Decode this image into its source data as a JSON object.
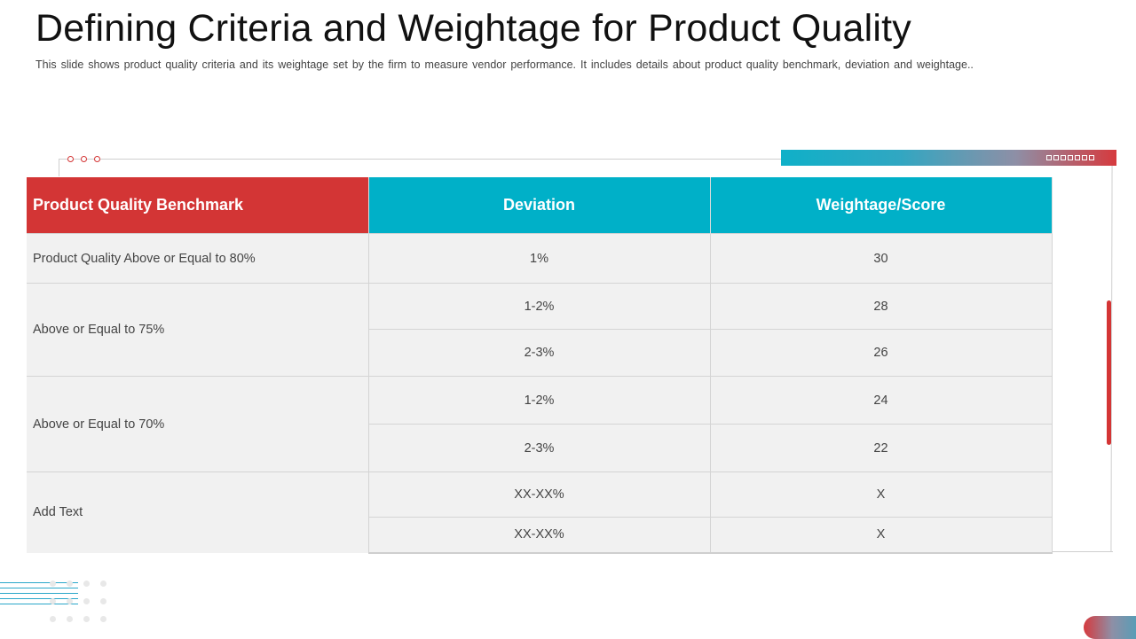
{
  "slide": {
    "title": "Defining Criteria and Weightage for Product Quality",
    "subtitle": "This slide shows product quality criteria and its weightage set by the firm to measure vendor performance. It includes details about product quality benchmark, deviation and weightage.."
  },
  "table": {
    "headers": {
      "benchmark": "Product Quality Benchmark",
      "deviation": "Deviation",
      "score": "Weightage/Score"
    },
    "groups": [
      {
        "benchmark": "Product Quality Above or Equal to 80%",
        "rows": [
          {
            "deviation": "1%",
            "score": "30"
          }
        ]
      },
      {
        "benchmark": "Above or Equal to 75%",
        "rows": [
          {
            "deviation": "1-2%",
            "score": "28"
          },
          {
            "deviation": "2-3%",
            "score": "26"
          }
        ]
      },
      {
        "benchmark": "Above or Equal to 70%",
        "rows": [
          {
            "deviation": "1-2%",
            "score": "24"
          },
          {
            "deviation": "2-3%",
            "score": "22"
          }
        ]
      },
      {
        "benchmark": "Add Text",
        "rows": [
          {
            "deviation": "XX-XX%",
            "score": "X"
          },
          {
            "deviation": "XX-XX%",
            "score": "X"
          }
        ]
      }
    ]
  },
  "colors": {
    "header_red": "#d33535",
    "header_teal": "#00b0c8",
    "cell_bg": "#f1f1f1"
  }
}
